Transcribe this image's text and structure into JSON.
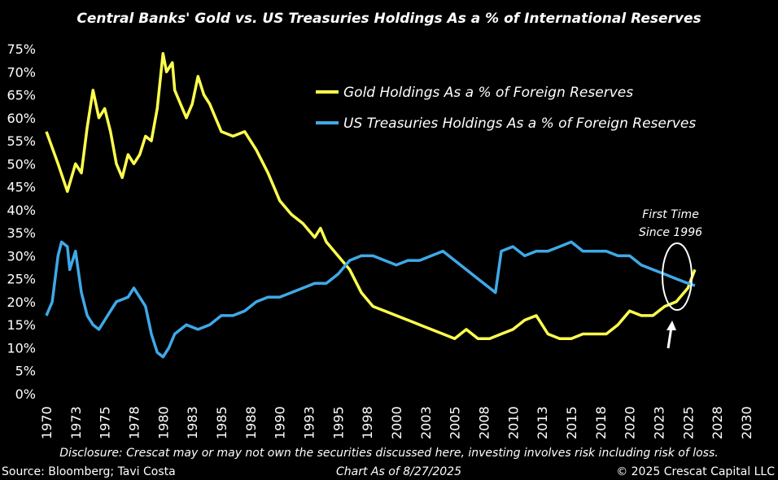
{
  "chart_data": {
    "type": "line",
    "title": "Central Banks' Gold vs. US Treasuries Holdings As a % of International Reserves",
    "xlim": [
      1970,
      2030
    ],
    "ylim": [
      0,
      75
    ],
    "y_tick_labels": [
      "0%",
      "5%",
      "10%",
      "15%",
      "20%",
      "25%",
      "30%",
      "35%",
      "40%",
      "45%",
      "50%",
      "55%",
      "60%",
      "65%",
      "70%",
      "75%"
    ],
    "x_tick_labels": [
      "1970",
      "1973",
      "1975",
      "1978",
      "1980",
      "1983",
      "1985",
      "1988",
      "1990",
      "1993",
      "1995",
      "1998",
      "2000",
      "2003",
      "2005",
      "2008",
      "2010",
      "2013",
      "2015",
      "2018",
      "2020",
      "2023",
      "2025",
      "2028",
      "2030"
    ],
    "grid": false,
    "legend_placement": "top-right",
    "series": [
      {
        "name": "Gold Holdings As a % of Foreign Reserves",
        "color": "#ffff4d",
        "x": [
          1970,
          1971,
          1971.8,
          1972.5,
          1973,
          1973.5,
          1974,
          1974.5,
          1975,
          1975.5,
          1976,
          1976.5,
          1977,
          1977.5,
          1978,
          1978.5,
          1979,
          1979.5,
          1980,
          1980.3,
          1980.8,
          1981,
          1981.5,
          1982,
          1982.5,
          1983,
          1983.5,
          1984,
          1984.5,
          1985,
          1986,
          1987,
          1988,
          1989,
          1990,
          1991,
          1992,
          1993,
          1993.5,
          1994,
          1995,
          1996,
          1997,
          1998,
          1999,
          2000,
          2001,
          2002,
          2003,
          2004,
          2005,
          2006,
          2007,
          2008,
          2009,
          2010,
          2011,
          2012,
          2013,
          2014,
          2015,
          2016,
          2017,
          2018,
          2019,
          2020,
          2021,
          2022,
          2023,
          2024,
          2025,
          2025.6
        ],
        "y": [
          57,
          50,
          44,
          50,
          48,
          58,
          66,
          60,
          62,
          57,
          50,
          47,
          52,
          50,
          52,
          56,
          55,
          62,
          74,
          70,
          72,
          66,
          63,
          60,
          63,
          69,
          65,
          63,
          60,
          57,
          56,
          57,
          53,
          48,
          42,
          39,
          37,
          34,
          36,
          33,
          30,
          27,
          22,
          19,
          18,
          17,
          16,
          15,
          14,
          13,
          12,
          14,
          12,
          12,
          13,
          14,
          16,
          17,
          13,
          12,
          12,
          13,
          13,
          13,
          15,
          18,
          17,
          17,
          19,
          20,
          23,
          27
        ]
      },
      {
        "name": "US Treasuries Holdings As a % of Foreign Reserves",
        "color": "#3fa9e8",
        "x": [
          1970,
          1970.5,
          1971,
          1971.3,
          1971.8,
          1972,
          1972.5,
          1973,
          1973.5,
          1974,
          1974.5,
          1975,
          1975.5,
          1976,
          1977,
          1977.5,
          1978,
          1978.5,
          1979,
          1979.5,
          1980,
          1980.5,
          1981,
          1982,
          1983,
          1984,
          1985,
          1986,
          1987,
          1988,
          1989,
          1990,
          1991,
          1992,
          1993,
          1994,
          1995,
          1996,
          1997,
          1998,
          1999,
          2000,
          2001,
          2002,
          2003,
          2004,
          2005,
          2006,
          2007,
          2008,
          2008.5,
          2009,
          2010,
          2011,
          2012,
          2013,
          2014,
          2015,
          2016,
          2017,
          2018,
          2019,
          2020,
          2021,
          2022,
          2023,
          2024,
          2025,
          2025.6
        ],
        "y": [
          17,
          20,
          30,
          33,
          32,
          27,
          31,
          22,
          17,
          15,
          14,
          16,
          18,
          20,
          21,
          23,
          21,
          19,
          13,
          9,
          8,
          10,
          13,
          15,
          14,
          15,
          17,
          17,
          18,
          20,
          21,
          21,
          22,
          23,
          24,
          24,
          26,
          29,
          30,
          30,
          29,
          28,
          29,
          29,
          30,
          31,
          29,
          27,
          25,
          23,
          22,
          31,
          32,
          30,
          31,
          31,
          32,
          33,
          31,
          31,
          31,
          30,
          30,
          28,
          27,
          26,
          25,
          24,
          23.5
        ]
      }
    ],
    "annotations": [
      "First Time",
      "Since 1996"
    ]
  },
  "footer": {
    "disclosure": "Disclosure: Crescat may or may not own the securities discussed here, investing involves risk including risk of loss.",
    "source": "Source: Bloomberg; Tavi Costa",
    "chart_date": "Chart As of 8/27/2025",
    "copyright": "© 2025 Crescat Capital LLC"
  }
}
